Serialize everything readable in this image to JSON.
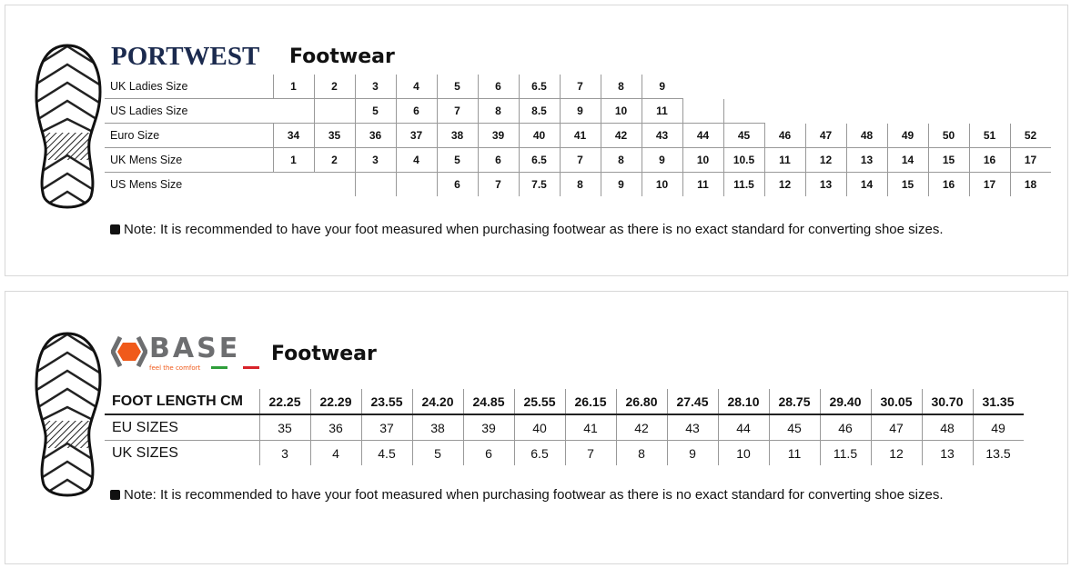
{
  "portwest": {
    "brand": "PORTWEST",
    "title": "Footwear",
    "rows": [
      {
        "label": "UK Ladies Size",
        "values": [
          "1",
          "2",
          "3",
          "4",
          "5",
          "6",
          "6.5",
          "7",
          "8",
          "9"
        ]
      },
      {
        "label": "US Ladies Size",
        "values": [
          "",
          "",
          "5",
          "6",
          "7",
          "8",
          "8.5",
          "9",
          "10",
          "11",
          "",
          ""
        ]
      },
      {
        "label": "Euro Size",
        "values": [
          "34",
          "35",
          "36",
          "37",
          "38",
          "39",
          "40",
          "41",
          "42",
          "43",
          "44",
          "45",
          "46",
          "47",
          "48",
          "49",
          "50",
          "51",
          "52"
        ]
      },
      {
        "label": "UK Mens Size",
        "values": [
          "1",
          "2",
          "3",
          "4",
          "5",
          "6",
          "6.5",
          "7",
          "8",
          "9",
          "10",
          "10.5",
          "11",
          "12",
          "13",
          "14",
          "15",
          "16",
          "17"
        ]
      },
      {
        "label": "US Mens Size",
        "values": [
          "",
          "",
          "",
          "",
          "6",
          "7",
          "7.5",
          "8",
          "9",
          "10",
          "11",
          "11.5",
          "12",
          "13",
          "14",
          "15",
          "16",
          "17",
          "18"
        ]
      }
    ],
    "note": "Note: It is recommended to have your foot measured when purchasing footwear as there is no exact standard for converting shoe sizes."
  },
  "base": {
    "brand": "BASE",
    "tagline": "feel the comfort",
    "title": "Footwear",
    "rows": [
      {
        "label": "FOOT LENGTH CM",
        "values": [
          "22.25",
          "22.29",
          "23.55",
          "24.20",
          "24.85",
          "25.55",
          "26.15",
          "26.80",
          "27.45",
          "28.10",
          "28.75",
          "29.40",
          "30.05",
          "30.70",
          "31.35"
        ]
      },
      {
        "label": "EU SIZES",
        "values": [
          "35",
          "36",
          "37",
          "38",
          "39",
          "40",
          "41",
          "42",
          "43",
          "44",
          "45",
          "46",
          "47",
          "48",
          "49"
        ]
      },
      {
        "label": "UK SIZES",
        "values": [
          "3",
          "4",
          "4.5",
          "5",
          "6",
          "6.5",
          "7",
          "8",
          "9",
          "10",
          "11",
          "11.5",
          "12",
          "13",
          "13.5"
        ]
      }
    ],
    "note": "Note: It is recommended to have your foot measured when purchasing footwear as there is no exact standard for converting shoe sizes."
  },
  "colors": {
    "portwest_navy": "#1b2a4e",
    "base_orange": "#f05a1a",
    "base_grey": "#6d6e70"
  }
}
